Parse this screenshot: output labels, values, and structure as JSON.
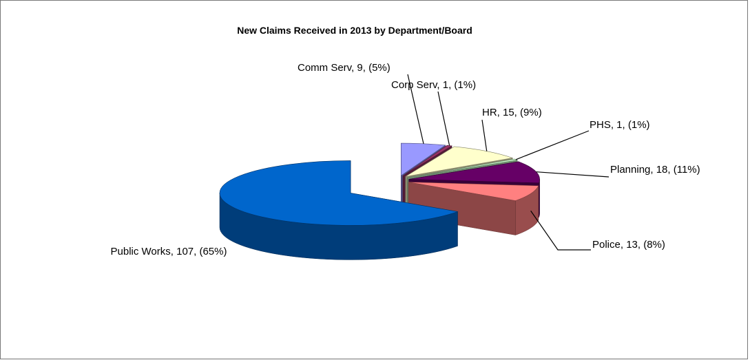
{
  "chart_data": {
    "type": "pie3d",
    "title": "New Claims  Received  in 2013 by Department/Board",
    "values": [
      9,
      1,
      15,
      1,
      18,
      13,
      107
    ],
    "value_labels": [
      "Comm Serv, 9, (5%)",
      "Corp Serv, 1, (1%)",
      "HR, 15, (9%)",
      "PHS, 1, (1%)",
      "Planning, 18, (11%)",
      "Police, 13, (8%)",
      "Public Works, 107, (65%)"
    ],
    "colors": [
      "#9999ff",
      "#993366",
      "#ffffcc",
      "#ccffcc",
      "#660066",
      "#ff8080",
      "#0066cc"
    ]
  }
}
